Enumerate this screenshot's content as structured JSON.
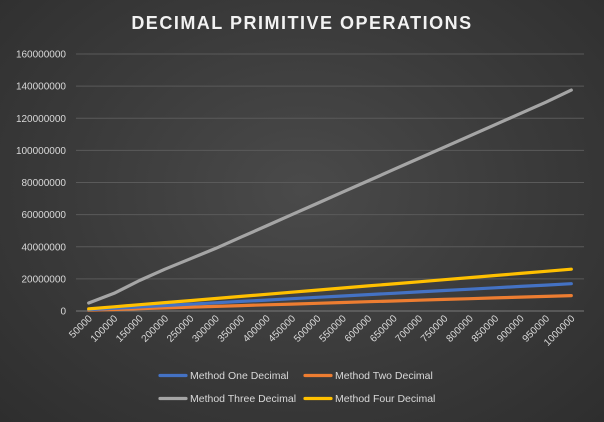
{
  "chart_data": {
    "type": "line",
    "title": "DECIMAL PRIMITIVE OPERATIONS",
    "xlabel": "",
    "ylabel": "",
    "ylim": [
      0,
      160000000
    ],
    "yticks": [
      "0",
      "20000000",
      "40000000",
      "60000000",
      "80000000",
      "100000000",
      "120000000",
      "140000000",
      "160000000"
    ],
    "x": [
      "50000",
      "100000",
      "150000",
      "200000",
      "250000",
      "300000",
      "350000",
      "400000",
      "450000",
      "500000",
      "550000",
      "600000",
      "650000",
      "700000",
      "750000",
      "800000",
      "850000",
      "900000",
      "950000",
      "1000000"
    ],
    "grid": true,
    "legend_position": "bottom",
    "series": [
      {
        "name": "Method One Decimal",
        "color": "#4472c4",
        "values": [
          850000,
          1700000,
          2550000,
          3400000,
          4250000,
          5100000,
          5950000,
          6800000,
          7650000,
          8500000,
          9350000,
          10200000,
          11050000,
          11900000,
          12750000,
          13600000,
          14450000,
          15300000,
          16150000,
          17000000
        ]
      },
      {
        "name": "Method Two Decimal",
        "color": "#ed7d31",
        "values": [
          480000,
          960000,
          1440000,
          1920000,
          2400000,
          2880000,
          3360000,
          3840000,
          4320000,
          4800000,
          5280000,
          5760000,
          6240000,
          6720000,
          7200000,
          7680000,
          8160000,
          8640000,
          9120000,
          9600000
        ]
      },
      {
        "name": "Method Three Decimal",
        "color": "#a5a5a5",
        "values": [
          5000000,
          11000000,
          19000000,
          26000000,
          32500000,
          39000000,
          46000000,
          53000000,
          60000000,
          67000000,
          74000000,
          81000000,
          88000000,
          95000000,
          102000000,
          109000000,
          116000000,
          123000000,
          130000000,
          137500000
        ]
      },
      {
        "name": "Method Four Decimal",
        "color": "#ffc000",
        "values": [
          1300000,
          2600000,
          3900000,
          5200000,
          6500000,
          7800000,
          9100000,
          10400000,
          11700000,
          13000000,
          14300000,
          15600000,
          16900000,
          18200000,
          19500000,
          20800000,
          22100000,
          23400000,
          24700000,
          26000000
        ]
      }
    ]
  }
}
